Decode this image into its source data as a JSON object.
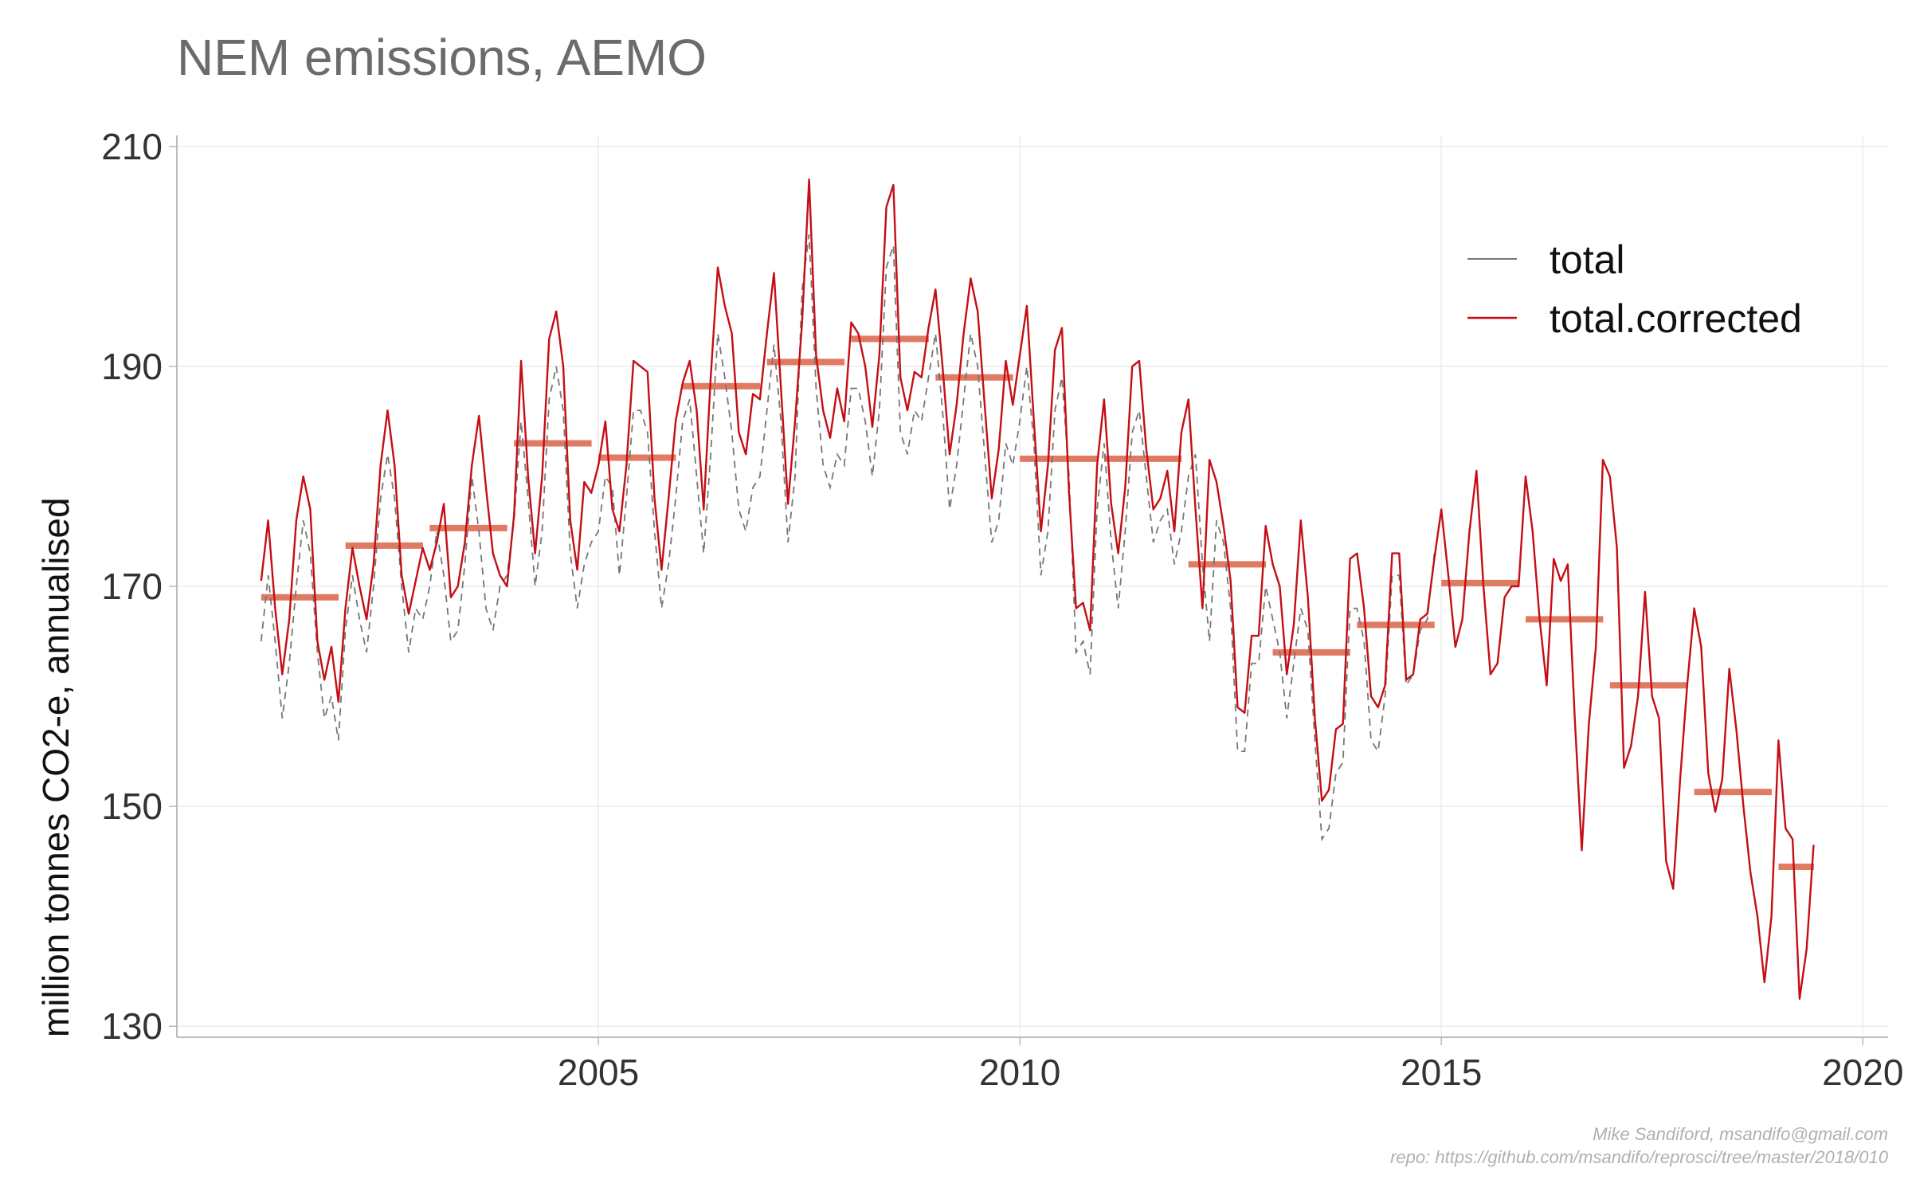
{
  "chart_data": {
    "type": "line",
    "title": "NEM emissions, AEMO",
    "ylabel": "million tonnes CO2-e, annualised",
    "xlabel": "",
    "xlim": [
      2000.0,
      2020.3
    ],
    "ylim": [
      129,
      211
    ],
    "xticks": [
      2005,
      2010,
      2015,
      2020
    ],
    "yticks": [
      130,
      150,
      170,
      190,
      210
    ],
    "grid": true,
    "legend_position": "top-right",
    "colors": {
      "total": "#777777",
      "total.corrected": "#c40e14",
      "annual_mean": "#e07a62"
    },
    "legend": [
      {
        "key": "total",
        "label": "total",
        "style": "dashed"
      },
      {
        "key": "total.corrected",
        "label": "total.corrected",
        "style": "solid"
      }
    ],
    "series": [
      {
        "name": "total",
        "style": "dashed",
        "x_start": 2001.0,
        "x_step": 0.0833333,
        "values": [
          165,
          171,
          165,
          158,
          163,
          170,
          176,
          173,
          164,
          158,
          160,
          156,
          166,
          171,
          167,
          164,
          170,
          178,
          182,
          178,
          170,
          164,
          168,
          167,
          170,
          175,
          171,
          165,
          166,
          172,
          180,
          175,
          168,
          166,
          170,
          171,
          176,
          185,
          178,
          170,
          175,
          187,
          190,
          186,
          173,
          168,
          172,
          174,
          175,
          180,
          179,
          171,
          178,
          186,
          186,
          184,
          175,
          168,
          172,
          178,
          185,
          187,
          180,
          173,
          182,
          193,
          189,
          184,
          177,
          175,
          179,
          180,
          186,
          192,
          185,
          174,
          180,
          197,
          202,
          188,
          181,
          179,
          182,
          181,
          188,
          188,
          185,
          180,
          186,
          199,
          201,
          184,
          182,
          186,
          185,
          189,
          193,
          186,
          177,
          181,
          187,
          193,
          190,
          182,
          174,
          176,
          183,
          181,
          185,
          190,
          183,
          171,
          175,
          186,
          189,
          180,
          164,
          165,
          162,
          177,
          183,
          174,
          168,
          175,
          184,
          186,
          180,
          174,
          176,
          177,
          172,
          175,
          180,
          182,
          172,
          165,
          176,
          174,
          168,
          155,
          155,
          163,
          163,
          170,
          167,
          164,
          158,
          163,
          168,
          166,
          156,
          147,
          148,
          153,
          154,
          168,
          168,
          165,
          156,
          155,
          160,
          171,
          171,
          161,
          162,
          166,
          167,
          173
        ]
      },
      {
        "name": "total.corrected",
        "style": "solid",
        "x_start": 2001.0,
        "x_step": 0.0833333,
        "values": [
          170.5,
          176,
          168,
          162,
          167,
          176,
          180,
          177,
          165,
          161.5,
          164.5,
          159.5,
          168,
          173.5,
          170,
          167,
          172,
          181,
          186,
          181,
          171,
          167.5,
          170.5,
          173.5,
          171.5,
          174,
          177.5,
          169,
          170,
          174,
          181,
          185.5,
          179,
          173,
          171,
          170,
          176.5,
          190.5,
          180,
          173,
          180,
          192.5,
          195,
          190,
          176,
          171.5,
          179.5,
          178.5,
          181,
          185,
          177,
          175,
          181,
          190.5,
          190,
          189.5,
          178,
          171.5,
          178,
          185,
          188.5,
          190.5,
          186,
          177,
          189,
          199,
          195.5,
          193,
          184,
          182,
          187.5,
          187,
          193,
          198.5,
          188,
          177.5,
          185,
          194,
          207,
          191,
          186,
          183.5,
          188,
          185,
          194,
          193,
          190,
          184.5,
          191,
          204.5,
          206.5,
          189,
          186,
          189.5,
          189,
          193.5,
          197,
          190,
          182,
          186.5,
          193,
          198,
          195,
          186.5,
          178,
          182.5,
          190.5,
          186.5,
          191,
          195.5,
          185,
          175,
          181,
          191.5,
          193.5,
          178.5,
          168,
          168.5,
          166,
          181,
          187,
          177.5,
          173,
          179,
          190,
          190.5,
          182.5,
          177,
          178,
          180.5,
          175,
          184,
          187,
          177,
          168,
          181.5,
          179.5,
          175.5,
          170.5,
          159,
          158.5,
          165.5,
          165.5,
          175.5,
          172,
          170,
          162,
          166.5,
          176,
          169,
          158,
          150.5,
          151.5,
          157,
          157.5,
          172.5,
          173,
          168,
          160,
          159,
          161,
          173,
          173,
          161.5,
          162,
          167,
          167.5,
          172.5,
          177,
          171,
          164.5,
          167,
          175,
          180.5,
          170,
          162,
          163,
          169,
          170,
          170,
          180,
          175,
          167,
          161,
          172.5,
          170.5,
          172,
          158,
          146,
          157.5,
          164.5,
          181.5,
          180,
          173.5,
          153.5,
          155.5,
          160,
          169.5,
          160,
          158,
          145,
          142.5,
          152.5,
          161,
          168,
          164.5,
          153,
          149.5,
          152.5,
          162.5,
          157,
          150,
          144,
          140,
          134,
          140,
          156,
          148,
          147,
          132.5,
          137,
          146.5
        ]
      },
      {
        "name": "annual mean",
        "style": "bar",
        "years": [
          2001,
          2002,
          2003,
          2004,
          2005,
          2006,
          2007,
          2008,
          2009,
          2010,
          2011,
          2012,
          2013,
          2014,
          2015,
          2016,
          2017,
          2018,
          2019
        ],
        "values": [
          169,
          173.7,
          175.3,
          183,
          181.7,
          188.2,
          190.4,
          192.5,
          189,
          181.6,
          181.6,
          172,
          164,
          166.5,
          170.3,
          167,
          161,
          151.3,
          144.5
        ],
        "last_year_span": 0.42
      }
    ]
  },
  "caption": {
    "line1": "Mike Sandiford, msandifo@gmail.com",
    "line2": "repo: https://github.com/msandifo/reprosci/tree/master/2018/010"
  }
}
